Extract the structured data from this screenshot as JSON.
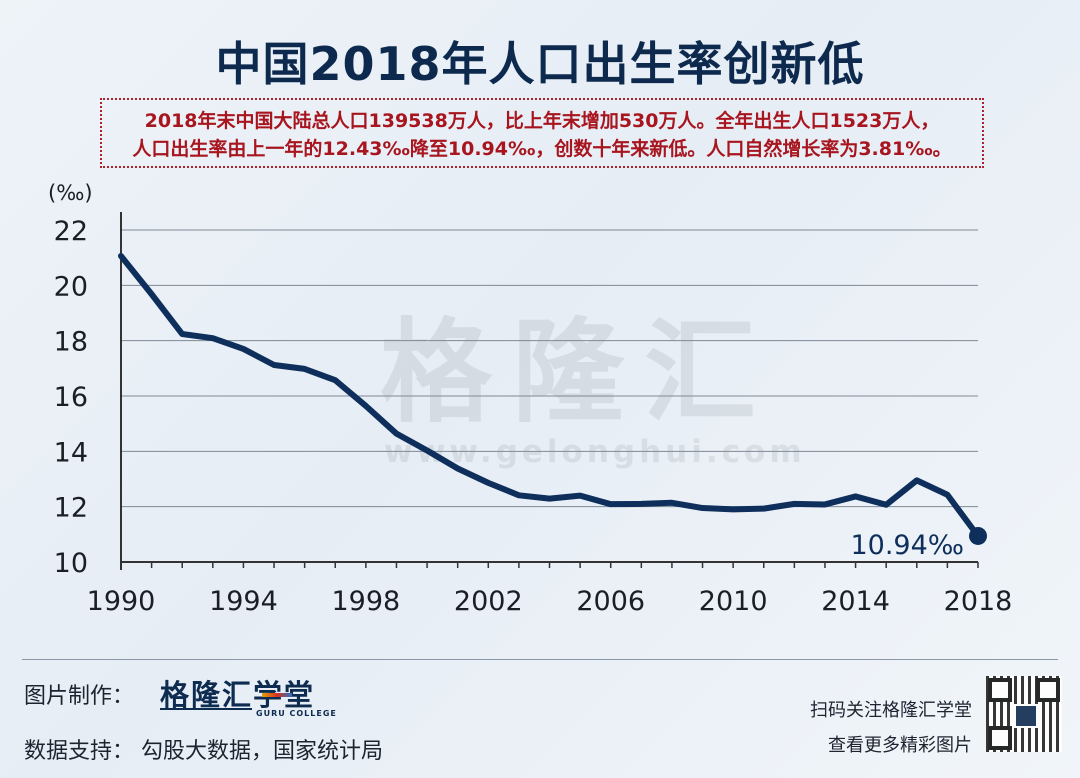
{
  "title": "中国2018年人口出生率创新低",
  "note": {
    "line1": "2018年末中国大陆总人口139538万人，比上年末增加530万人。全年出生人口1523万人，",
    "line2": "人口出生率由上一年的12.43‰降至10.94‰，创数十年来新低。人口自然增长率为3.81‰。"
  },
  "watermark": {
    "text": "格隆汇",
    "url": "www.gelonghui.com"
  },
  "footer": {
    "credit_label": "图片制作：",
    "brand": "格隆汇学堂",
    "brand_sub": "GURU COLLEGE",
    "source": "数据支持：  勾股大数据，国家统计局",
    "qr_line1": "扫码关注格隆汇学堂",
    "qr_line2": "查看更多精彩图片"
  },
  "colors": {
    "line": "#0e2f5c",
    "title": "#0d2a4e",
    "note": "#a8151e",
    "grid": "#7f8a96"
  },
  "chart_data": {
    "type": "line",
    "title": "",
    "xlabel": "",
    "ylabel": "(‰)",
    "xlim": [
      1990,
      2018
    ],
    "ylim": [
      10,
      22
    ],
    "x_ticks": [
      "1990",
      "1994",
      "1998",
      "2002",
      "2006",
      "2010",
      "2014",
      "2018"
    ],
    "y_ticks": [
      "10",
      "12",
      "14",
      "16",
      "18",
      "20",
      "22"
    ],
    "grid": true,
    "series": [
      {
        "name": "",
        "x": [
          1990,
          1991,
          1992,
          1993,
          1994,
          1995,
          1996,
          1997,
          1998,
          1999,
          2000,
          2001,
          2002,
          2003,
          2004,
          2005,
          2006,
          2007,
          2008,
          2009,
          2010,
          2011,
          2012,
          2013,
          2014,
          2015,
          2016,
          2017,
          2018
        ],
        "y": [
          21.06,
          19.68,
          18.24,
          18.09,
          17.7,
          17.12,
          16.98,
          16.57,
          15.64,
          14.64,
          14.03,
          13.38,
          12.86,
          12.41,
          12.29,
          12.4,
          12.09,
          12.1,
          12.14,
          11.95,
          11.9,
          11.93,
          12.1,
          12.08,
          12.37,
          12.07,
          12.95,
          12.43,
          10.94
        ]
      }
    ],
    "annotation": {
      "x": 2018,
      "y": 10.94,
      "text": "10.94‰"
    }
  }
}
